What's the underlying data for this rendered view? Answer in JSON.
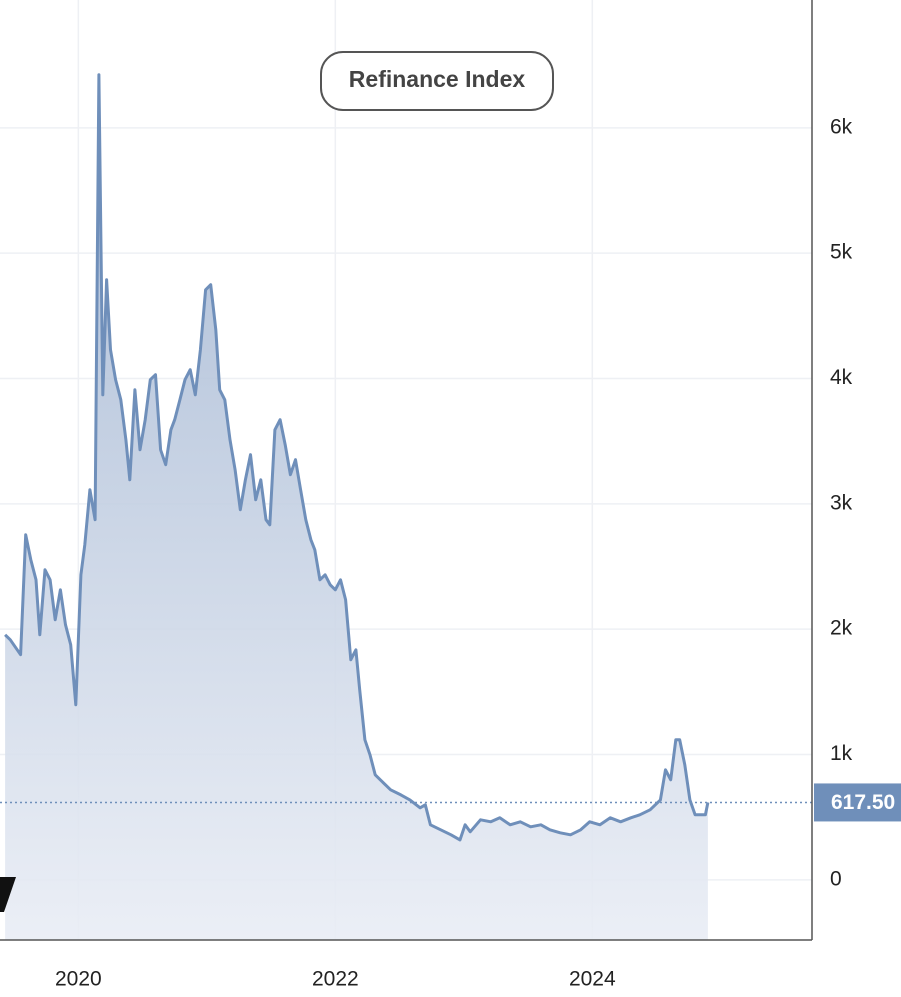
{
  "chart_data": {
    "type": "area",
    "title": "Refinance Index",
    "x": [
      2019.43,
      2019.47,
      2019.55,
      2019.59,
      2019.63,
      2019.67,
      2019.7,
      2019.74,
      2019.78,
      2019.82,
      2019.86,
      2019.9,
      2019.94,
      2019.98,
      2020.02,
      2020.05,
      2020.09,
      2020.13,
      2020.16,
      2020.19,
      2020.22,
      2020.25,
      2020.29,
      2020.33,
      2020.37,
      2020.4,
      2020.44,
      2020.48,
      2020.52,
      2020.56,
      2020.6,
      2020.64,
      2020.68,
      2020.72,
      2020.75,
      2020.79,
      2020.83,
      2020.87,
      2020.91,
      2020.95,
      2020.99,
      2021.03,
      2021.07,
      2021.1,
      2021.14,
      2021.18,
      2021.22,
      2021.26,
      2021.3,
      2021.34,
      2021.38,
      2021.42,
      2021.46,
      2021.49,
      2021.53,
      2021.57,
      2021.61,
      2021.65,
      2021.69,
      2021.73,
      2021.77,
      2021.81,
      2021.84,
      2021.88,
      2021.92,
      2021.96,
      2022.0,
      2022.04,
      2022.08,
      2022.12,
      2022.16,
      2022.19,
      2022.23,
      2022.27,
      2022.31,
      2022.35,
      2022.43,
      2022.51,
      2022.58,
      2022.66,
      2022.7,
      2022.74,
      2022.82,
      2022.9,
      2022.97,
      2023.01,
      2023.05,
      2023.13,
      2023.21,
      2023.28,
      2023.36,
      2023.44,
      2023.52,
      2023.6,
      2023.67,
      2023.75,
      2023.83,
      2023.91,
      2023.98,
      2024.06,
      2024.14,
      2024.22,
      2024.3,
      2024.37,
      2024.45,
      2024.53,
      2024.57,
      2024.61,
      2024.65,
      2024.68,
      2024.72,
      2024.76,
      2024.8,
      2024.88,
      2024.9
    ],
    "series": [
      {
        "name": "Refinance Index",
        "color": "#6f8fba",
        "values": [
          1955,
          1915,
          1796,
          2753,
          2554,
          2394,
          1955,
          2474,
          2394,
          2075,
          2314,
          2035,
          1875,
          1397,
          2434,
          2673,
          3112,
          2873,
          6424,
          3870,
          4788,
          4229,
          3990,
          3830,
          3511,
          3192,
          3910,
          3431,
          3671,
          3990,
          4030,
          3431,
          3312,
          3591,
          3671,
          3830,
          3990,
          4070,
          3870,
          4229,
          4708,
          4748,
          4389,
          3910,
          3830,
          3511,
          3272,
          2953,
          3192,
          3392,
          3032,
          3192,
          2873,
          2833,
          3591,
          3671,
          3471,
          3232,
          3352,
          3112,
          2873,
          2713,
          2633,
          2394,
          2434,
          2354,
          2314,
          2394,
          2234,
          1756,
          1835,
          1516,
          1117,
          998,
          838,
          798,
          718,
          678,
          638,
          575,
          599,
          439,
          399,
          359,
          319,
          439,
          383,
          479,
          463,
          495,
          439,
          463,
          423,
          439,
          399,
          375,
          359,
          399,
          463,
          439,
          495,
          463,
          495,
          519,
          559,
          638,
          878,
          798,
          1117,
          1117,
          918,
          638,
          519,
          519,
          617.5
        ]
      }
    ],
    "last_value": 617.5,
    "last_value_label": "617.50",
    "xlim": [
      2019.39,
      2025.71
    ],
    "xticks": [
      2020,
      2022,
      2024
    ],
    "ylim": [
      -480,
      6940
    ],
    "yticks": [
      0,
      {
        "value": 1000,
        "label": "1k"
      },
      {
        "value": 2000,
        "label": "2k"
      },
      {
        "value": 3000,
        "label": "3k"
      },
      {
        "value": 4000,
        "label": "4k"
      },
      {
        "value": 5000,
        "label": "5k"
      },
      {
        "value": 6000,
        "label": "6k"
      }
    ],
    "grid": true
  }
}
